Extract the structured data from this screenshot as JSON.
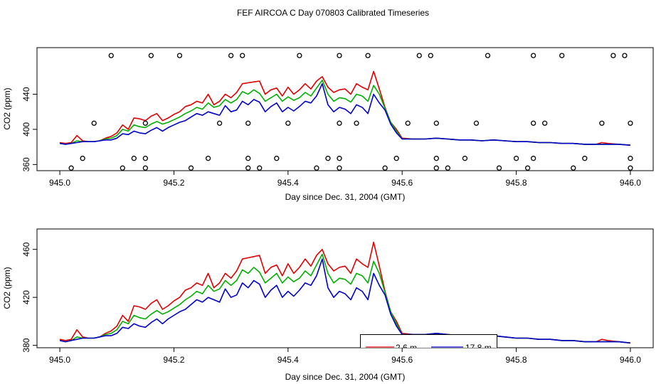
{
  "title": "FEF AIRCOA C  Day 070803  Calibrated Timeseries",
  "chart_data": [
    {
      "type": "line",
      "xlabel": "Day since Dec. 31, 2004 (GMT)",
      "ylabel": "CO2 (ppm)",
      "xlim": [
        944.96,
        946.04
      ],
      "ylim": [
        353,
        493
      ],
      "xticks": [
        {
          "value": 945.0,
          "label": "945.0"
        },
        {
          "value": 945.2,
          "label": "945.2"
        },
        {
          "value": 945.4,
          "label": "945.4"
        },
        {
          "value": 945.6,
          "label": "945.6"
        },
        {
          "value": 945.8,
          "label": "945.8"
        },
        {
          "value": 946.0,
          "label": "946.0"
        }
      ],
      "yticks": [
        {
          "value": 360,
          "label": "360"
        },
        {
          "value": 400,
          "label": "400"
        },
        {
          "value": 440,
          "label": "440"
        }
      ],
      "x": [
        945.0,
        945.01,
        945.02,
        945.03,
        945.04,
        945.05,
        945.06,
        945.07,
        945.08,
        945.09,
        945.1,
        945.11,
        945.12,
        945.13,
        945.14,
        945.15,
        945.16,
        945.17,
        945.18,
        945.19,
        945.2,
        945.21,
        945.22,
        945.23,
        945.24,
        945.25,
        945.26,
        945.27,
        945.28,
        945.29,
        945.3,
        945.31,
        945.32,
        945.33,
        945.34,
        945.35,
        945.36,
        945.37,
        945.38,
        945.39,
        945.4,
        945.41,
        945.42,
        945.43,
        945.44,
        945.45,
        945.46,
        945.47,
        945.48,
        945.49,
        945.5,
        945.51,
        945.52,
        945.53,
        945.54,
        945.55,
        945.56,
        945.57,
        945.58,
        945.59,
        945.6,
        945.62,
        945.64,
        945.66,
        945.68,
        945.7,
        945.72,
        945.74,
        945.76,
        945.78,
        945.8,
        945.82,
        945.84,
        945.86,
        945.88,
        945.9,
        945.92,
        945.94,
        945.95,
        945.96,
        945.98,
        946.0
      ],
      "series": [
        {
          "name": "2.6 m",
          "color": "#e00000",
          "values": [
            385,
            384,
            385,
            393,
            387,
            386,
            386,
            387,
            390,
            392,
            396,
            405,
            400,
            413,
            412,
            410,
            415,
            418,
            410,
            413,
            417,
            420,
            426,
            428,
            432,
            430,
            440,
            428,
            432,
            440,
            436,
            442,
            452,
            453,
            454,
            455,
            440,
            445,
            447,
            438,
            448,
            440,
            445,
            452,
            446,
            455,
            460,
            448,
            442,
            445,
            446,
            440,
            452,
            448,
            445,
            466,
            446,
            425,
            408,
            400,
            390,
            389,
            389,
            390,
            389,
            388,
            388,
            387,
            388,
            387,
            386,
            386,
            385,
            385,
            384,
            384,
            383,
            383,
            385,
            384,
            383,
            382
          ]
        },
        {
          "name": "",
          "color": "#00b000",
          "values": [
            384,
            383,
            384,
            387,
            386,
            386,
            386,
            387,
            389,
            390,
            393,
            400,
            398,
            405,
            403,
            402,
            406,
            409,
            406,
            408,
            411,
            414,
            418,
            421,
            425,
            423,
            430,
            425,
            427,
            434,
            430,
            434,
            443,
            440,
            445,
            441,
            432,
            436,
            440,
            432,
            437,
            433,
            436,
            442,
            438,
            447,
            456,
            440,
            432,
            436,
            435,
            431,
            440,
            438,
            432,
            450,
            440,
            424,
            408,
            398,
            389,
            389,
            389,
            390,
            389,
            388,
            388,
            387,
            388,
            387,
            386,
            386,
            385,
            385,
            384,
            384,
            383,
            383,
            383,
            383,
            383,
            382
          ]
        },
        {
          "name": "17.8 m",
          "color": "#0000cc",
          "values": [
            384,
            383,
            384,
            385,
            386,
            386,
            386,
            387,
            388,
            388,
            390,
            395,
            394,
            398,
            396,
            395,
            399,
            402,
            398,
            402,
            405,
            408,
            410,
            414,
            418,
            416,
            420,
            418,
            416,
            427,
            420,
            422,
            432,
            428,
            434,
            431,
            420,
            426,
            430,
            420,
            425,
            421,
            426,
            432,
            430,
            438,
            452,
            428,
            420,
            425,
            423,
            418,
            428,
            425,
            418,
            440,
            430,
            422,
            406,
            396,
            389,
            389,
            389,
            390,
            389,
            388,
            388,
            387,
            388,
            387,
            386,
            386,
            385,
            385,
            384,
            384,
            383,
            383,
            383,
            383,
            383,
            382
          ]
        }
      ],
      "markers": [
        {
          "x": 945.09,
          "y": 484
        },
        {
          "x": 945.16,
          "y": 484
        },
        {
          "x": 945.21,
          "y": 484
        },
        {
          "x": 945.3,
          "y": 484
        },
        {
          "x": 945.32,
          "y": 484
        },
        {
          "x": 945.42,
          "y": 484
        },
        {
          "x": 945.49,
          "y": 484
        },
        {
          "x": 945.54,
          "y": 484
        },
        {
          "x": 945.63,
          "y": 484
        },
        {
          "x": 945.65,
          "y": 484
        },
        {
          "x": 945.75,
          "y": 484
        },
        {
          "x": 945.83,
          "y": 484
        },
        {
          "x": 945.88,
          "y": 484
        },
        {
          "x": 945.97,
          "y": 484
        },
        {
          "x": 945.99,
          "y": 484
        },
        {
          "x": 945.06,
          "y": 407
        },
        {
          "x": 945.15,
          "y": 407
        },
        {
          "x": 945.28,
          "y": 407
        },
        {
          "x": 945.33,
          "y": 407
        },
        {
          "x": 945.4,
          "y": 407
        },
        {
          "x": 945.49,
          "y": 407
        },
        {
          "x": 945.52,
          "y": 407
        },
        {
          "x": 945.61,
          "y": 407
        },
        {
          "x": 945.66,
          "y": 407
        },
        {
          "x": 945.73,
          "y": 407
        },
        {
          "x": 945.83,
          "y": 407
        },
        {
          "x": 945.85,
          "y": 407
        },
        {
          "x": 945.95,
          "y": 407
        },
        {
          "x": 946.0,
          "y": 407
        },
        {
          "x": 945.04,
          "y": 367
        },
        {
          "x": 945.13,
          "y": 367
        },
        {
          "x": 945.15,
          "y": 367
        },
        {
          "x": 945.26,
          "y": 367
        },
        {
          "x": 945.33,
          "y": 367
        },
        {
          "x": 945.38,
          "y": 367
        },
        {
          "x": 945.47,
          "y": 367
        },
        {
          "x": 945.49,
          "y": 367
        },
        {
          "x": 945.59,
          "y": 367
        },
        {
          "x": 945.66,
          "y": 367
        },
        {
          "x": 945.71,
          "y": 367
        },
        {
          "x": 945.8,
          "y": 367
        },
        {
          "x": 945.83,
          "y": 367
        },
        {
          "x": 945.92,
          "y": 367
        },
        {
          "x": 946.0,
          "y": 367
        },
        {
          "x": 945.02,
          "y": 356
        },
        {
          "x": 945.11,
          "y": 356
        },
        {
          "x": 945.15,
          "y": 356
        },
        {
          "x": 945.23,
          "y": 356
        },
        {
          "x": 945.33,
          "y": 356
        },
        {
          "x": 945.35,
          "y": 356
        },
        {
          "x": 945.45,
          "y": 356
        },
        {
          "x": 945.49,
          "y": 356
        },
        {
          "x": 945.57,
          "y": 356
        },
        {
          "x": 945.66,
          "y": 356
        },
        {
          "x": 945.68,
          "y": 356
        },
        {
          "x": 945.77,
          "y": 356
        },
        {
          "x": 945.82,
          "y": 356
        },
        {
          "x": 945.9,
          "y": 356
        },
        {
          "x": 946.0,
          "y": 356
        }
      ]
    },
    {
      "type": "line",
      "xlabel": "Day since Dec. 31, 2004 (GMT)",
      "ylabel": "CO2 (ppm)",
      "xlim": [
        944.96,
        946.04
      ],
      "ylim": [
        378,
        477
      ],
      "xticks": [
        {
          "value": 945.0,
          "label": "945.0"
        },
        {
          "value": 945.2,
          "label": "945.2"
        },
        {
          "value": 945.4,
          "label": "945.4"
        },
        {
          "value": 945.6,
          "label": "945.6"
        },
        {
          "value": 945.8,
          "label": "945.8"
        },
        {
          "value": 946.0,
          "label": "946.0"
        }
      ],
      "yticks": [
        {
          "value": 380,
          "label": "380"
        },
        {
          "value": 420,
          "label": "420"
        },
        {
          "value": 460,
          "label": "460"
        }
      ],
      "legend": {
        "position": "bottom-center",
        "entries": [
          "2.6 m",
          "17.8 m"
        ]
      }
    }
  ]
}
